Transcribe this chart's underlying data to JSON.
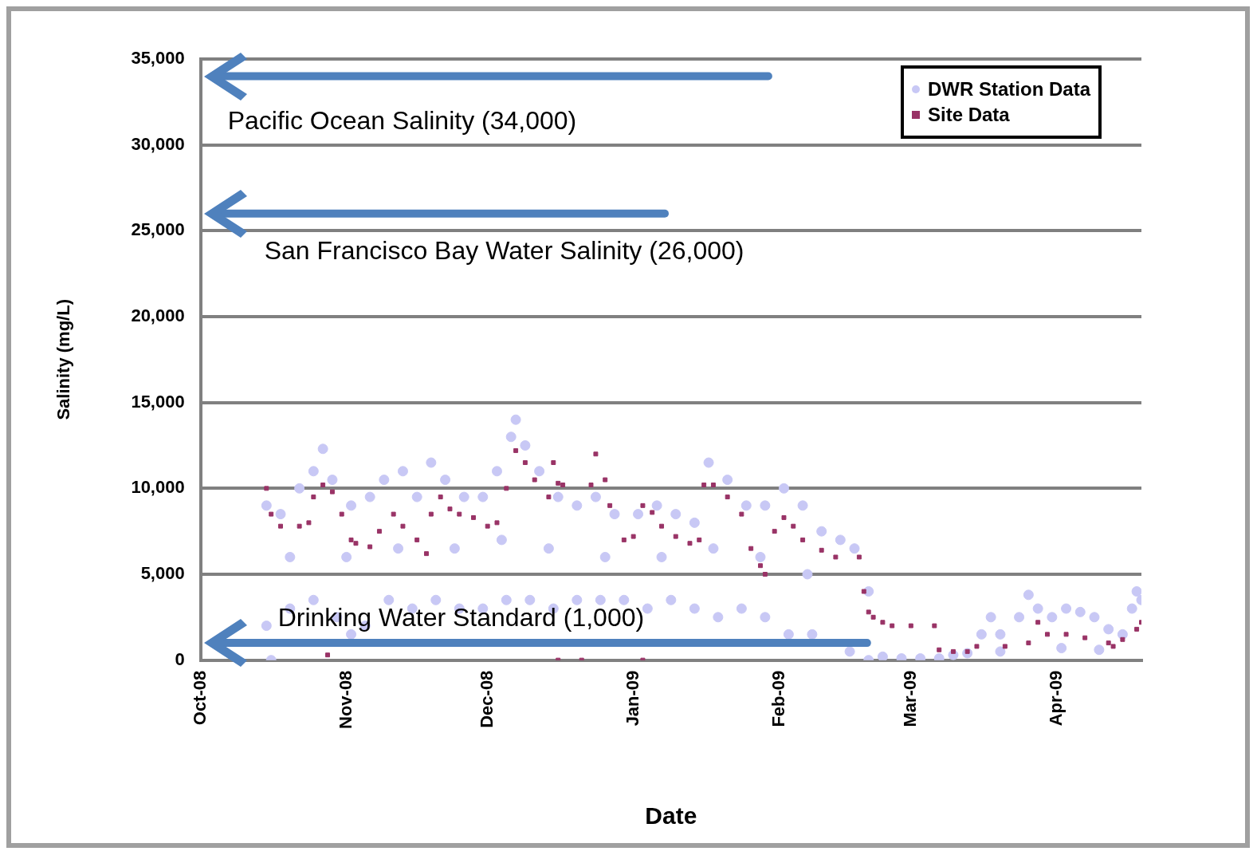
{
  "chart_data": {
    "type": "scatter",
    "xlabel": "Date",
    "ylabel": "Salinity (mg/L)",
    "xlim": [
      "2008-10-01",
      "2009-04-19"
    ],
    "xticks": [
      {
        "value": "2008-10-01",
        "label": "Oct-08"
      },
      {
        "value": "2008-11-01",
        "label": "Nov-08"
      },
      {
        "value": "2008-12-01",
        "label": "Dec-08"
      },
      {
        "value": "2009-01-01",
        "label": "Jan-09"
      },
      {
        "value": "2009-02-01",
        "label": "Feb-09"
      },
      {
        "value": "2009-03-01",
        "label": "Mar-09"
      },
      {
        "value": "2009-04-01",
        "label": "Apr-09"
      }
    ],
    "ylim": [
      0,
      35000
    ],
    "yticks": [
      {
        "value": 0,
        "label": "0"
      },
      {
        "value": 5000,
        "label": "5,000"
      },
      {
        "value": 10000,
        "label": "10,000"
      },
      {
        "value": 15000,
        "label": "15,000"
      },
      {
        "value": 20000,
        "label": "20,000"
      },
      {
        "value": 25000,
        "label": "25,000"
      },
      {
        "value": 30000,
        "label": "30,000"
      },
      {
        "value": 35000,
        "label": "35,000"
      }
    ],
    "grid": "y",
    "legend": "top right",
    "ref_lines": [
      {
        "axis": "y",
        "value": 34000,
        "label": "Pacific Ocean Salinity (34,000)",
        "color": "#4f81bd"
      },
      {
        "axis": "y",
        "value": 26000,
        "label": "San Francisco Bay Water Salinity (26,000)",
        "color": "#4f81bd"
      },
      {
        "axis": "y",
        "value": 1000,
        "label": "Drinking Water Standard (1,000)",
        "color": "#4f81bd"
      }
    ],
    "series": [
      {
        "name": "DWR Station Data",
        "color": "#c8c8f5",
        "marker": "circle",
        "x": [
          "2008-10-15",
          "2008-10-18",
          "2008-10-22",
          "2008-10-25",
          "2008-10-27",
          "2008-10-29",
          "2008-11-02",
          "2008-11-06",
          "2008-11-09",
          "2008-11-13",
          "2008-11-16",
          "2008-11-19",
          "2008-11-22",
          "2008-11-26",
          "2008-11-30",
          "2008-12-03",
          "2008-12-06",
          "2008-12-07",
          "2008-12-09",
          "2008-12-12",
          "2008-12-16",
          "2008-12-20",
          "2008-12-24",
          "2008-12-28",
          "2009-01-02",
          "2009-01-06",
          "2009-01-10",
          "2009-01-14",
          "2009-01-17",
          "2009-01-21",
          "2009-01-25",
          "2009-01-29",
          "2009-02-02",
          "2009-02-06",
          "2009-02-10",
          "2009-02-14",
          "2009-02-17",
          "2009-02-20",
          "2008-10-15",
          "2008-10-16",
          "2008-10-20",
          "2008-10-25",
          "2008-10-30",
          "2008-11-02",
          "2008-11-05",
          "2008-11-10",
          "2008-11-15",
          "2008-11-20",
          "2008-11-25",
          "2008-11-30",
          "2008-12-05",
          "2008-12-10",
          "2008-12-15",
          "2008-12-20",
          "2008-12-25",
          "2008-12-30",
          "2009-01-04",
          "2009-01-09",
          "2009-01-14",
          "2009-01-19",
          "2009-01-24",
          "2009-01-29",
          "2009-02-03",
          "2009-02-08",
          "2009-02-12",
          "2009-02-16",
          "2009-02-20",
          "2008-10-20",
          "2008-11-01",
          "2008-11-12",
          "2008-11-24",
          "2008-12-04",
          "2008-12-14",
          "2008-12-26",
          "2009-01-07",
          "2009-01-18",
          "2009-01-28",
          "2009-02-07",
          "2009-02-23",
          "2009-02-27",
          "2009-03-03",
          "2009-03-07",
          "2009-03-10",
          "2009-03-13",
          "2009-03-16",
          "2009-03-18",
          "2009-03-20",
          "2009-03-24",
          "2009-03-26",
          "2009-03-28",
          "2009-03-31",
          "2009-04-03",
          "2009-04-06",
          "2009-04-09",
          "2009-04-12",
          "2009-04-15",
          "2009-04-17",
          "2009-04-18",
          "2009-04-19",
          "2009-03-20",
          "2009-04-02",
          "2009-04-10"
        ],
        "values": [
          9000,
          8500,
          10000,
          11000,
          12300,
          10500,
          9000,
          9500,
          10500,
          11000,
          9500,
          11500,
          10500,
          9500,
          9500,
          11000,
          13000,
          14000,
          12500,
          11000,
          9500,
          9000,
          9500,
          8500,
          8500,
          9000,
          8500,
          8000,
          11500,
          10500,
          9000,
          9000,
          10000,
          9000,
          7500,
          7000,
          6500,
          4000,
          2000,
          0,
          3000,
          3500,
          2500,
          1500,
          2000,
          3500,
          3000,
          3500,
          3000,
          3000,
          3500,
          3500,
          3000,
          3500,
          3500,
          3500,
          3000,
          3500,
          3000,
          2500,
          3000,
          2500,
          1500,
          1500,
          null,
          500,
          0,
          6000,
          6000,
          6500,
          6500,
          7000,
          6500,
          6000,
          6000,
          6500,
          6000,
          5000,
          200,
          100,
          100,
          100,
          300,
          400,
          1500,
          2500,
          1500,
          2500,
          3800,
          3000,
          2500,
          3000,
          2800,
          2500,
          1800,
          1500,
          3000,
          4000,
          3500,
          500,
          700,
          600
        ]
      },
      {
        "name": "Site Data",
        "color": "#993366",
        "marker": "square",
        "x": [
          "2008-10-15",
          "2008-10-16",
          "2008-10-18",
          "2008-10-22",
          "2008-10-24",
          "2008-10-25",
          "2008-10-27",
          "2008-10-28",
          "2008-10-29",
          "2008-10-31",
          "2008-11-02",
          "2008-11-03",
          "2008-11-06",
          "2008-11-08",
          "2008-11-11",
          "2008-11-13",
          "2008-11-16",
          "2008-11-18",
          "2008-11-19",
          "2008-11-21",
          "2008-11-23",
          "2008-11-25",
          "2008-11-28",
          "2008-12-01",
          "2008-12-03",
          "2008-12-05",
          "2008-12-07",
          "2008-12-09",
          "2008-12-11",
          "2008-12-14",
          "2008-12-15",
          "2008-12-16",
          "2008-12-16",
          "2008-12-17",
          "2008-12-21",
          "2008-12-23",
          "2008-12-24",
          "2008-12-26",
          "2008-12-27",
          "2008-12-30",
          "2009-01-01",
          "2009-01-03",
          "2009-01-03",
          "2009-01-05",
          "2009-01-07",
          "2009-01-10",
          "2009-01-13",
          "2009-01-15",
          "2009-01-16",
          "2009-01-18",
          "2009-01-21",
          "2009-01-24",
          "2009-01-26",
          "2009-01-28",
          "2009-01-29",
          "2009-01-31",
          "2009-02-02",
          "2009-02-04",
          "2009-02-06",
          "2009-02-10",
          "2009-02-13",
          "2009-02-18",
          "2009-02-19",
          "2009-02-20",
          "2009-02-21",
          "2009-02-23",
          "2009-02-25",
          "2009-03-01",
          "2009-03-06",
          "2009-03-07",
          "2009-03-10",
          "2009-03-13",
          "2009-03-15",
          "2009-03-21",
          "2009-03-26",
          "2009-03-28",
          "2009-03-30",
          "2009-04-03",
          "2009-04-07",
          "2009-04-12",
          "2009-04-13",
          "2009-04-15",
          "2009-04-18",
          "2009-04-19"
        ],
        "values": [
          10000,
          8500,
          7800,
          7800,
          8000,
          9500,
          10200,
          300,
          9800,
          8500,
          7000,
          6800,
          6600,
          7500,
          8500,
          7800,
          7000,
          6200,
          8500,
          9500,
          8800,
          8500,
          8300,
          7800,
          8000,
          10000,
          12200,
          11500,
          10500,
          9500,
          11500,
          10300,
          0,
          10200,
          0,
          10200,
          12000,
          10500,
          9000,
          7000,
          7200,
          0,
          9000,
          8600,
          7800,
          7200,
          6800,
          7000,
          10200,
          10200,
          9500,
          8500,
          6500,
          5500,
          5000,
          7500,
          8300,
          7800,
          7000,
          6400,
          6000,
          6000,
          4000,
          2800,
          2500,
          2200,
          2000,
          2000,
          2000,
          600,
          500,
          500,
          800,
          800,
          1000,
          2200,
          1500,
          1500,
          1300,
          1000,
          800,
          1200,
          1800,
          2200
        ]
      }
    ]
  }
}
